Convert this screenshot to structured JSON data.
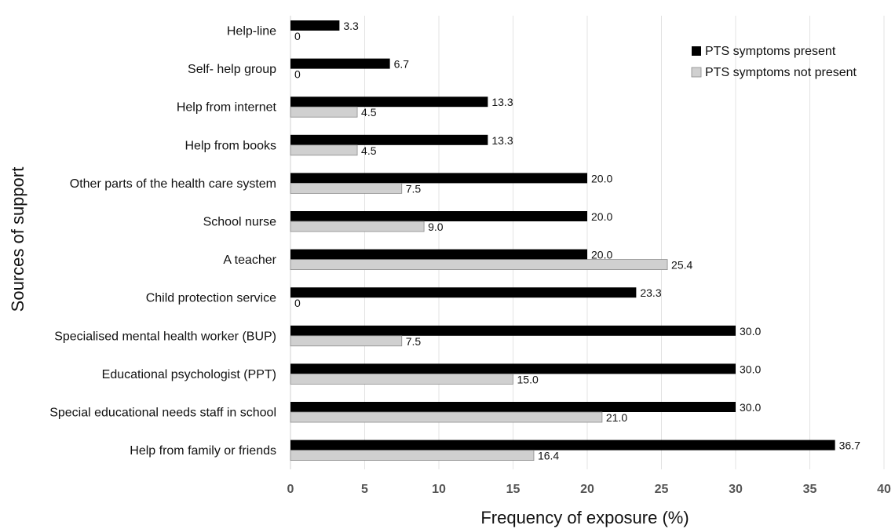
{
  "chart_data": {
    "type": "bar",
    "orientation": "horizontal",
    "categories": [
      "Help-line",
      "Self- help group",
      "Help from internet",
      "Help from books",
      "Other parts of the health care system",
      "School nurse",
      "A teacher",
      "Child protection service",
      "Specialised mental health worker (BUP)",
      "Educational psychologist (PPT)",
      "Special educational needs staff in school",
      "Help from family or friends"
    ],
    "series": [
      {
        "name": "PTS symptoms present",
        "color": "#000000",
        "values": [
          3.3,
          6.7,
          13.3,
          13.3,
          20.0,
          20.0,
          20.0,
          23.3,
          30.0,
          30.0,
          30.0,
          36.7
        ],
        "labels": [
          "3.3",
          "6.7",
          "13.3",
          "13.3",
          "20.0",
          "20.0",
          "20.0",
          "23.3",
          "30.0",
          "30.0",
          "30.0",
          "36.7"
        ]
      },
      {
        "name": "PTS symptoms not present",
        "color": "#d0d0d0",
        "values": [
          0,
          0,
          4.5,
          4.5,
          7.5,
          9.0,
          25.4,
          0,
          7.5,
          15.0,
          21.0,
          16.4
        ],
        "labels": [
          "0",
          "0",
          "4.5",
          "4.5",
          "7.5",
          "9.0",
          "25.4",
          "0",
          "7.5",
          "15.0",
          "21.0",
          "16.4"
        ]
      }
    ],
    "xlabel": "Frequency of exposure (%)",
    "ylabel": "Sources of support",
    "xlim": [
      0,
      40
    ],
    "xticks": [
      0,
      5,
      10,
      15,
      20,
      25,
      30,
      35,
      40
    ],
    "grid": "vertical",
    "legend_position": "top-right"
  }
}
